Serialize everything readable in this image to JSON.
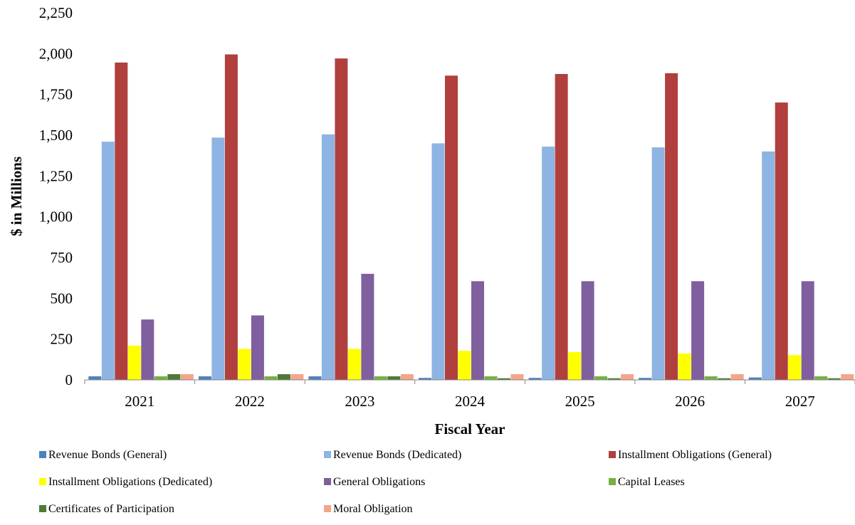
{
  "chart_data": {
    "type": "bar",
    "title": "",
    "xlabel": "Fiscal Year",
    "ylabel": "$ in Millions",
    "ylim": [
      0,
      2250
    ],
    "yticks": [
      "0",
      "250",
      "500",
      "750",
      "1,000",
      "1,250",
      "1,500",
      "1,750",
      "2,000",
      "2,250"
    ],
    "ytick_values": [
      0,
      250,
      500,
      750,
      1000,
      1250,
      1500,
      1750,
      2000,
      2250
    ],
    "grid": false,
    "legend_position": "bottom",
    "categories": [
      "2021",
      "2022",
      "2023",
      "2024",
      "2025",
      "2026",
      "2027"
    ],
    "series": [
      {
        "name": "Revenue Bonds (General)",
        "color": "#4f81bd",
        "values": [
          22,
          22,
          22,
          12,
          12,
          12,
          15
        ]
      },
      {
        "name": "Revenue Bonds (Dedicated)",
        "color": "#8eb4e3",
        "values": [
          1460,
          1485,
          1505,
          1450,
          1430,
          1425,
          1400
        ]
      },
      {
        "name": "Installment Obligations (General)",
        "color": "#b03f3d",
        "values": [
          1945,
          1995,
          1970,
          1865,
          1875,
          1880,
          1700
        ]
      },
      {
        "name": "Installment Obligations (Dedicated)",
        "color": "#ffff00",
        "values": [
          210,
          190,
          190,
          178,
          170,
          162,
          152
        ]
      },
      {
        "name": "General Obligations",
        "color": "#7f5f9e",
        "values": [
          370,
          395,
          650,
          605,
          605,
          605,
          605
        ]
      },
      {
        "name": "Capital Leases",
        "color": "#77b042",
        "values": [
          22,
          22,
          22,
          22,
          22,
          22,
          22
        ]
      },
      {
        "name": "Certificates of Participation",
        "color": "#4e7a33",
        "values": [
          35,
          35,
          22,
          10,
          10,
          10,
          10
        ]
      },
      {
        "name": "Moral Obligation",
        "color": "#f4a58a",
        "values": [
          35,
          35,
          35,
          35,
          35,
          35,
          35
        ]
      }
    ]
  }
}
